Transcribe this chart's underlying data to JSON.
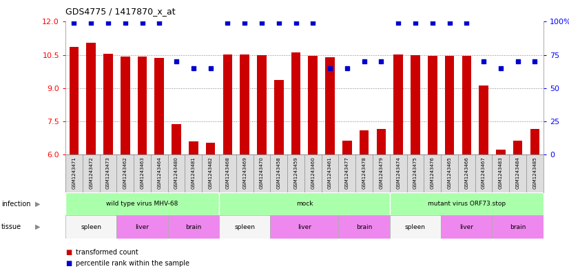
{
  "title": "GDS4775 / 1417870_x_at",
  "samples": [
    "GSM1243471",
    "GSM1243472",
    "GSM1243473",
    "GSM1243462",
    "GSM1243463",
    "GSM1243464",
    "GSM1243480",
    "GSM1243481",
    "GSM1243482",
    "GSM1243468",
    "GSM1243469",
    "GSM1243470",
    "GSM1243458",
    "GSM1243459",
    "GSM1243460",
    "GSM1243461",
    "GSM1243477",
    "GSM1243478",
    "GSM1243479",
    "GSM1243474",
    "GSM1243475",
    "GSM1243476",
    "GSM1243465",
    "GSM1243466",
    "GSM1243467",
    "GSM1243483",
    "GSM1243484",
    "GSM1243485"
  ],
  "bar_values": [
    10.85,
    11.05,
    10.55,
    10.42,
    10.42,
    10.35,
    7.38,
    6.58,
    6.52,
    10.52,
    10.52,
    10.48,
    9.38,
    10.62,
    10.45,
    10.38,
    6.62,
    7.08,
    7.15,
    10.52,
    10.48,
    10.45,
    10.45,
    10.45,
    9.12,
    6.22,
    6.62,
    7.15
  ],
  "percentile_values": [
    99,
    99,
    99,
    99,
    99,
    99,
    70,
    65,
    65,
    99,
    99,
    99,
    99,
    99,
    99,
    65,
    65,
    70,
    70,
    99,
    99,
    99,
    99,
    99,
    70,
    65,
    70,
    70
  ],
  "bar_color": "#cc0000",
  "percentile_color": "#0000cc",
  "ylim_left": [
    6,
    12
  ],
  "ylim_right": [
    0,
    100
  ],
  "yticks_left": [
    6,
    7.5,
    9,
    10.5,
    12
  ],
  "yticks_right": [
    0,
    25,
    50,
    75,
    100
  ],
  "hlines": [
    7.5,
    9.0,
    10.5
  ],
  "infection_groups": [
    {
      "label": "wild type virus MHV-68",
      "start": 0,
      "end": 8,
      "color": "#aaffaa"
    },
    {
      "label": "mock",
      "start": 9,
      "end": 18,
      "color": "#aaffaa"
    },
    {
      "label": "mutant virus ORF73.stop",
      "start": 19,
      "end": 27,
      "color": "#aaffaa"
    }
  ],
  "tissue_groups": [
    {
      "label": "spleen",
      "start": 0,
      "end": 2,
      "color": "#f5f5f5"
    },
    {
      "label": "liver",
      "start": 3,
      "end": 5,
      "color": "#ee88ee"
    },
    {
      "label": "brain",
      "start": 6,
      "end": 8,
      "color": "#ee88ee"
    },
    {
      "label": "spleen",
      "start": 9,
      "end": 11,
      "color": "#f5f5f5"
    },
    {
      "label": "liver",
      "start": 12,
      "end": 15,
      "color": "#ee88ee"
    },
    {
      "label": "brain",
      "start": 16,
      "end": 18,
      "color": "#ee88ee"
    },
    {
      "label": "spleen",
      "start": 19,
      "end": 21,
      "color": "#f5f5f5"
    },
    {
      "label": "liver",
      "start": 22,
      "end": 24,
      "color": "#ee88ee"
    },
    {
      "label": "brain",
      "start": 25,
      "end": 27,
      "color": "#ee88ee"
    }
  ],
  "chart_bg": "#ffffff",
  "xtick_bg": "#dddddd"
}
